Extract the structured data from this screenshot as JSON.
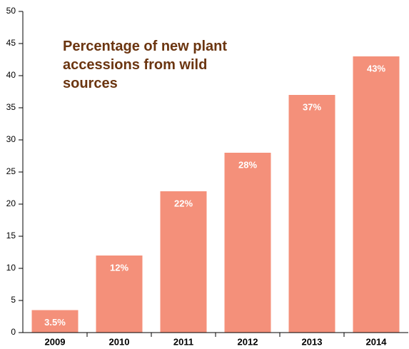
{
  "chart_data": {
    "type": "bar",
    "title": "Percentage of new plant accessions from wild sources",
    "categories": [
      "2009",
      "2010",
      "2011",
      "2012",
      "2013",
      "2014"
    ],
    "values": [
      3.5,
      12,
      22,
      28,
      37,
      43
    ],
    "value_labels": [
      "3.5%",
      "12%",
      "22%",
      "28%",
      "37%",
      "43%"
    ],
    "color": "#f4907a",
    "ylim": [
      0,
      50
    ],
    "yticks": [
      0,
      5,
      10,
      15,
      20,
      25,
      30,
      35,
      40,
      45,
      50
    ]
  }
}
